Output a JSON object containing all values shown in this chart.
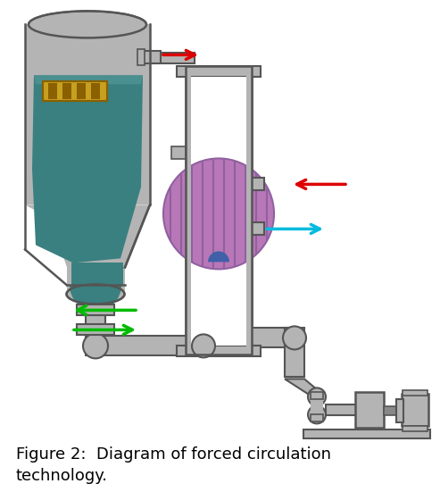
{
  "title": "Figure 2:  Diagram of forced circulation\ntechnology.",
  "title_fontsize": 13,
  "bg_color": "#ffffff",
  "gray": "#b4b4b4",
  "gray_light": "#c8c8c8",
  "dark_gray": "#888888",
  "teal": "#3a8080",
  "teal_light": "#4a9090",
  "purple": "#b878b8",
  "purple_stripe": "#9060a0",
  "blue_bottom": "#4060a8",
  "gold": "#c8a020",
  "gold_dark": "#8a6000",
  "red_arrow": "#dd0000",
  "green_arrow": "#00bb00",
  "cyan_arrow": "#00bbdd",
  "pipe_edge": "#555555"
}
